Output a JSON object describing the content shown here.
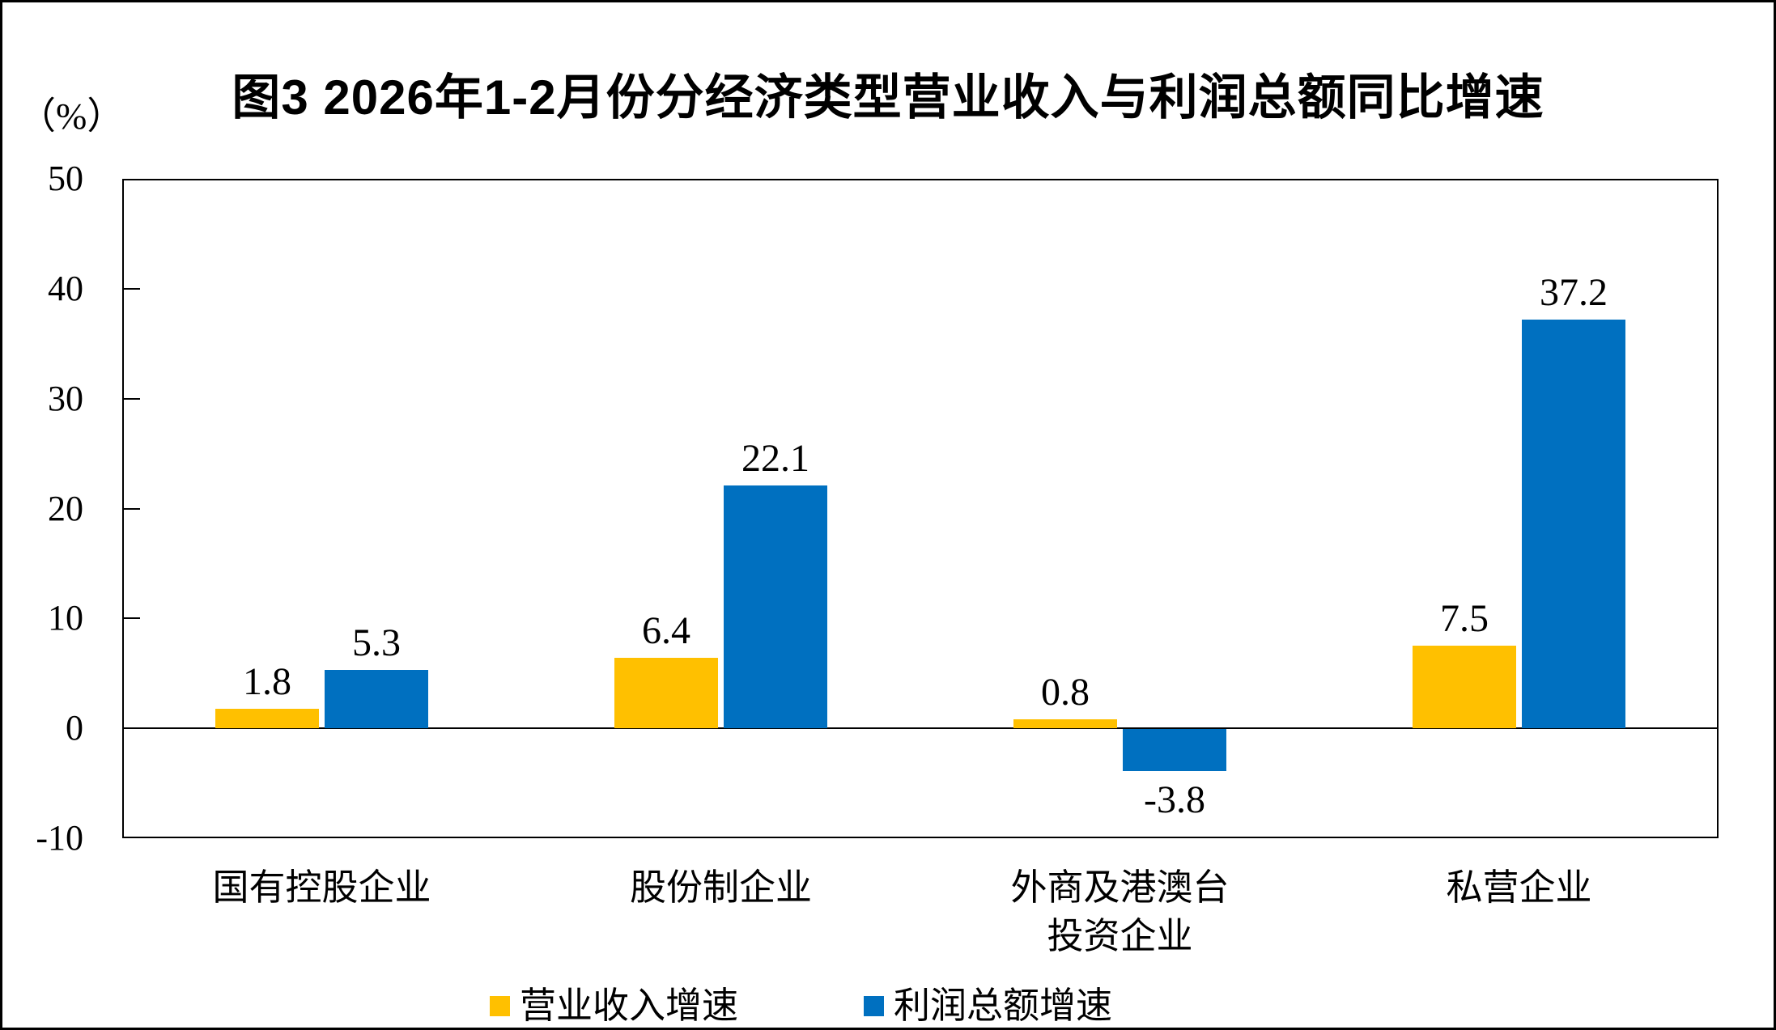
{
  "chart_data": {
    "type": "bar",
    "title": "图3 2026年1-2月份分经济类型营业收入与利润总额同比增速",
    "unit_label": "（%）",
    "categories": [
      "国有控股企业",
      "股份制企业",
      "外商及港澳台\n投资企业",
      "私营企业"
    ],
    "series": [
      {
        "name": "营业收入增速",
        "color": "#FFC000",
        "values": [
          1.8,
          6.4,
          0.8,
          7.5
        ]
      },
      {
        "name": "利润总额增速",
        "color": "#0070C0",
        "values": [
          5.3,
          22.1,
          -3.8,
          37.2
        ]
      }
    ],
    "value_labels": {
      "营业收入增速": [
        "1.8",
        "6.4",
        "0.8",
        "7.5"
      ],
      "利润总额增速": [
        "5.3",
        "22.1",
        "-3.8",
        "37.2"
      ]
    },
    "y_axis": {
      "min": -10,
      "max": 50,
      "step": 10,
      "tick_labels": [
        "50",
        "40",
        "30",
        "20",
        "10",
        "0",
        "-10"
      ]
    },
    "legend_position": "bottom",
    "grid": false,
    "colors": {
      "bar_yellow": "#FFC000",
      "bar_blue": "#0070C0",
      "axis": "#000000",
      "background": "#FFFFFF"
    }
  }
}
